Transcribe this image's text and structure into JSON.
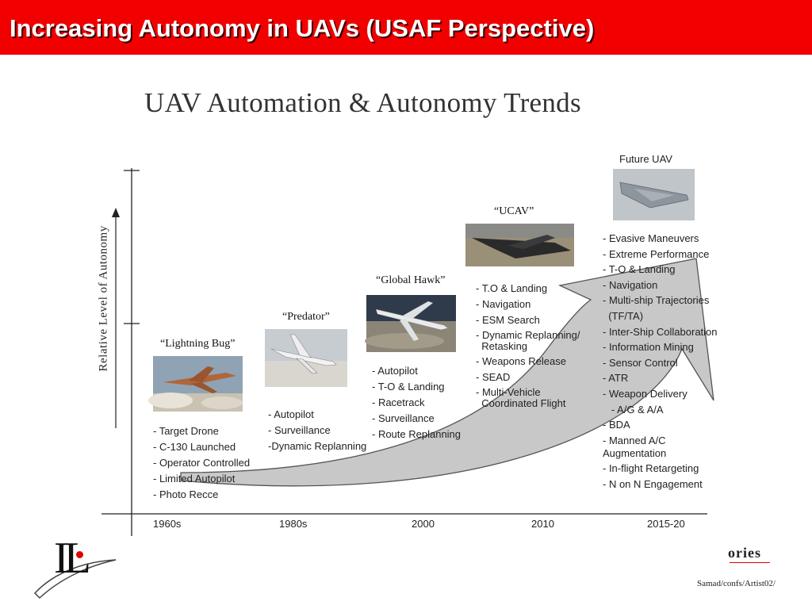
{
  "slide": {
    "title": "Increasing Autonomy in UAVs (USAF Perspective)",
    "title_bar_color": "#f20000"
  },
  "figure": {
    "title": "UAV Automation & Autonomy Trends",
    "y_axis_label": "Relative Level of Autonomy",
    "x_ticks": [
      "1960s",
      "1980s",
      "2000",
      "2010",
      "2015-20"
    ],
    "arrow_color": "#c8c8c8"
  },
  "stages": [
    {
      "name": "“Lightning Bug”",
      "photo": "lightning-bug-drone-photo",
      "capabilities": [
        "- Target Drone",
        "- C-130 Launched",
        "- Operator Controlled",
        "- Limited Autopilot",
        "- Photo Recce"
      ]
    },
    {
      "name": "“Predator”",
      "photo": "predator-uav-photo",
      "capabilities": [
        "- Autopilot",
        "- Surveillance",
        "-Dynamic Replanning"
      ]
    },
    {
      "name": "“Global Hawk”",
      "photo": "global-hawk-uav-photo",
      "capabilities": [
        "- Autopilot",
        "- T-O & Landing",
        "- Racetrack",
        "- Surveillance",
        "- Route Replanning"
      ]
    },
    {
      "name": "“UCAV”",
      "photo": "ucav-photo",
      "capabilities": [
        "- T.O & Landing",
        "- Navigation",
        "- ESM Search",
        "- Dynamic Replanning/\n  Retasking",
        "- Weapons Release",
        "- SEAD",
        "- Multi-Vehicle\n  Coordinated Flight"
      ]
    },
    {
      "name": "Future UAV",
      "photo": "future-uav-photo",
      "capabilities": [
        "- Evasive Maneuvers",
        "- Extreme Performance",
        "- T-O & Landing",
        "- Navigation",
        "- Multi-ship Trajectories",
        "  (TF/TA)",
        "- Inter-Ship Collaboration",
        "- Information Mining",
        "- Sensor Control",
        "- ATR",
        "- Weapon Delivery",
        "   - A/G & A/A",
        "- BDA",
        "- Manned A/C\nAugmentation",
        "- In-flight Retargeting",
        "- N on N Engagement"
      ]
    }
  ],
  "logo": {
    "letters": "IL",
    "org_fragment": "ories",
    "accent_color": "#e00000"
  },
  "footer": {
    "path": "Samad/confs/Artist02/"
  }
}
